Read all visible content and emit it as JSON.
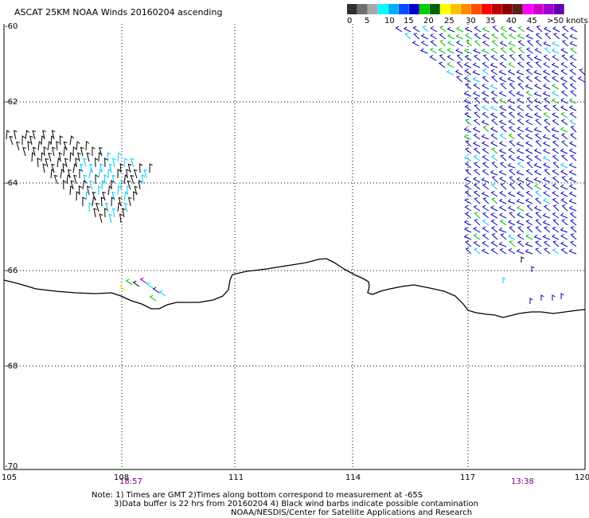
{
  "header": {
    "title": "ASCAT 25KM NOAA Winds 20160204 ascending"
  },
  "legend": {
    "swatches": [
      {
        "color": "#303030"
      },
      {
        "color": "#6e6e6e"
      },
      {
        "color": "#a8a8a8"
      },
      {
        "color": "#00ffff"
      },
      {
        "color": "#00b0ff"
      },
      {
        "color": "#0050ff"
      },
      {
        "color": "#0000c8"
      },
      {
        "color": "#00d000"
      },
      {
        "color": "#006400"
      },
      {
        "color": "#ffff00"
      },
      {
        "color": "#ffc000"
      },
      {
        "color": "#ff8c00"
      },
      {
        "color": "#ff5000"
      },
      {
        "color": "#ff0000"
      },
      {
        "color": "#c00000"
      },
      {
        "color": "#8b0000"
      },
      {
        "color": "#5a1e1e"
      },
      {
        "color": "#ff00ff"
      },
      {
        "color": "#d000d0"
      },
      {
        "color": "#a000d0"
      },
      {
        "color": "#6000b0"
      }
    ],
    "labels": [
      "0",
      "5",
      "10",
      "15",
      "20",
      "25",
      "30",
      "35",
      "40",
      "45",
      ">50 knots"
    ]
  },
  "axes": {
    "lat_labels": [
      "-60",
      "-62",
      "-64",
      "-66",
      "-68",
      "-70"
    ],
    "lon_labels": [
      "105",
      "108",
      "111",
      "114",
      "117",
      "120"
    ]
  },
  "times": {
    "left": "18:57",
    "right": "13:38"
  },
  "notes": {
    "line1": "Note: 1) Times are GMT 2)Times along bottom correspond to measurement at -65S",
    "line2": "3)Data buffer is 22 hrs from 20160204 4) Black wind barbs indicate possible contamination",
    "line3": "NOAA/NESDIS/Center for Satellite Applications and Research"
  },
  "colors": {
    "barb_black": "#000000",
    "barb_cyan": "#00c8ff",
    "barb_blue": "#0000c0",
    "barb_green": "#00c000",
    "barb_yellow": "#e8e800",
    "barb_purple": "#8000c0",
    "coastline": "#000000"
  }
}
